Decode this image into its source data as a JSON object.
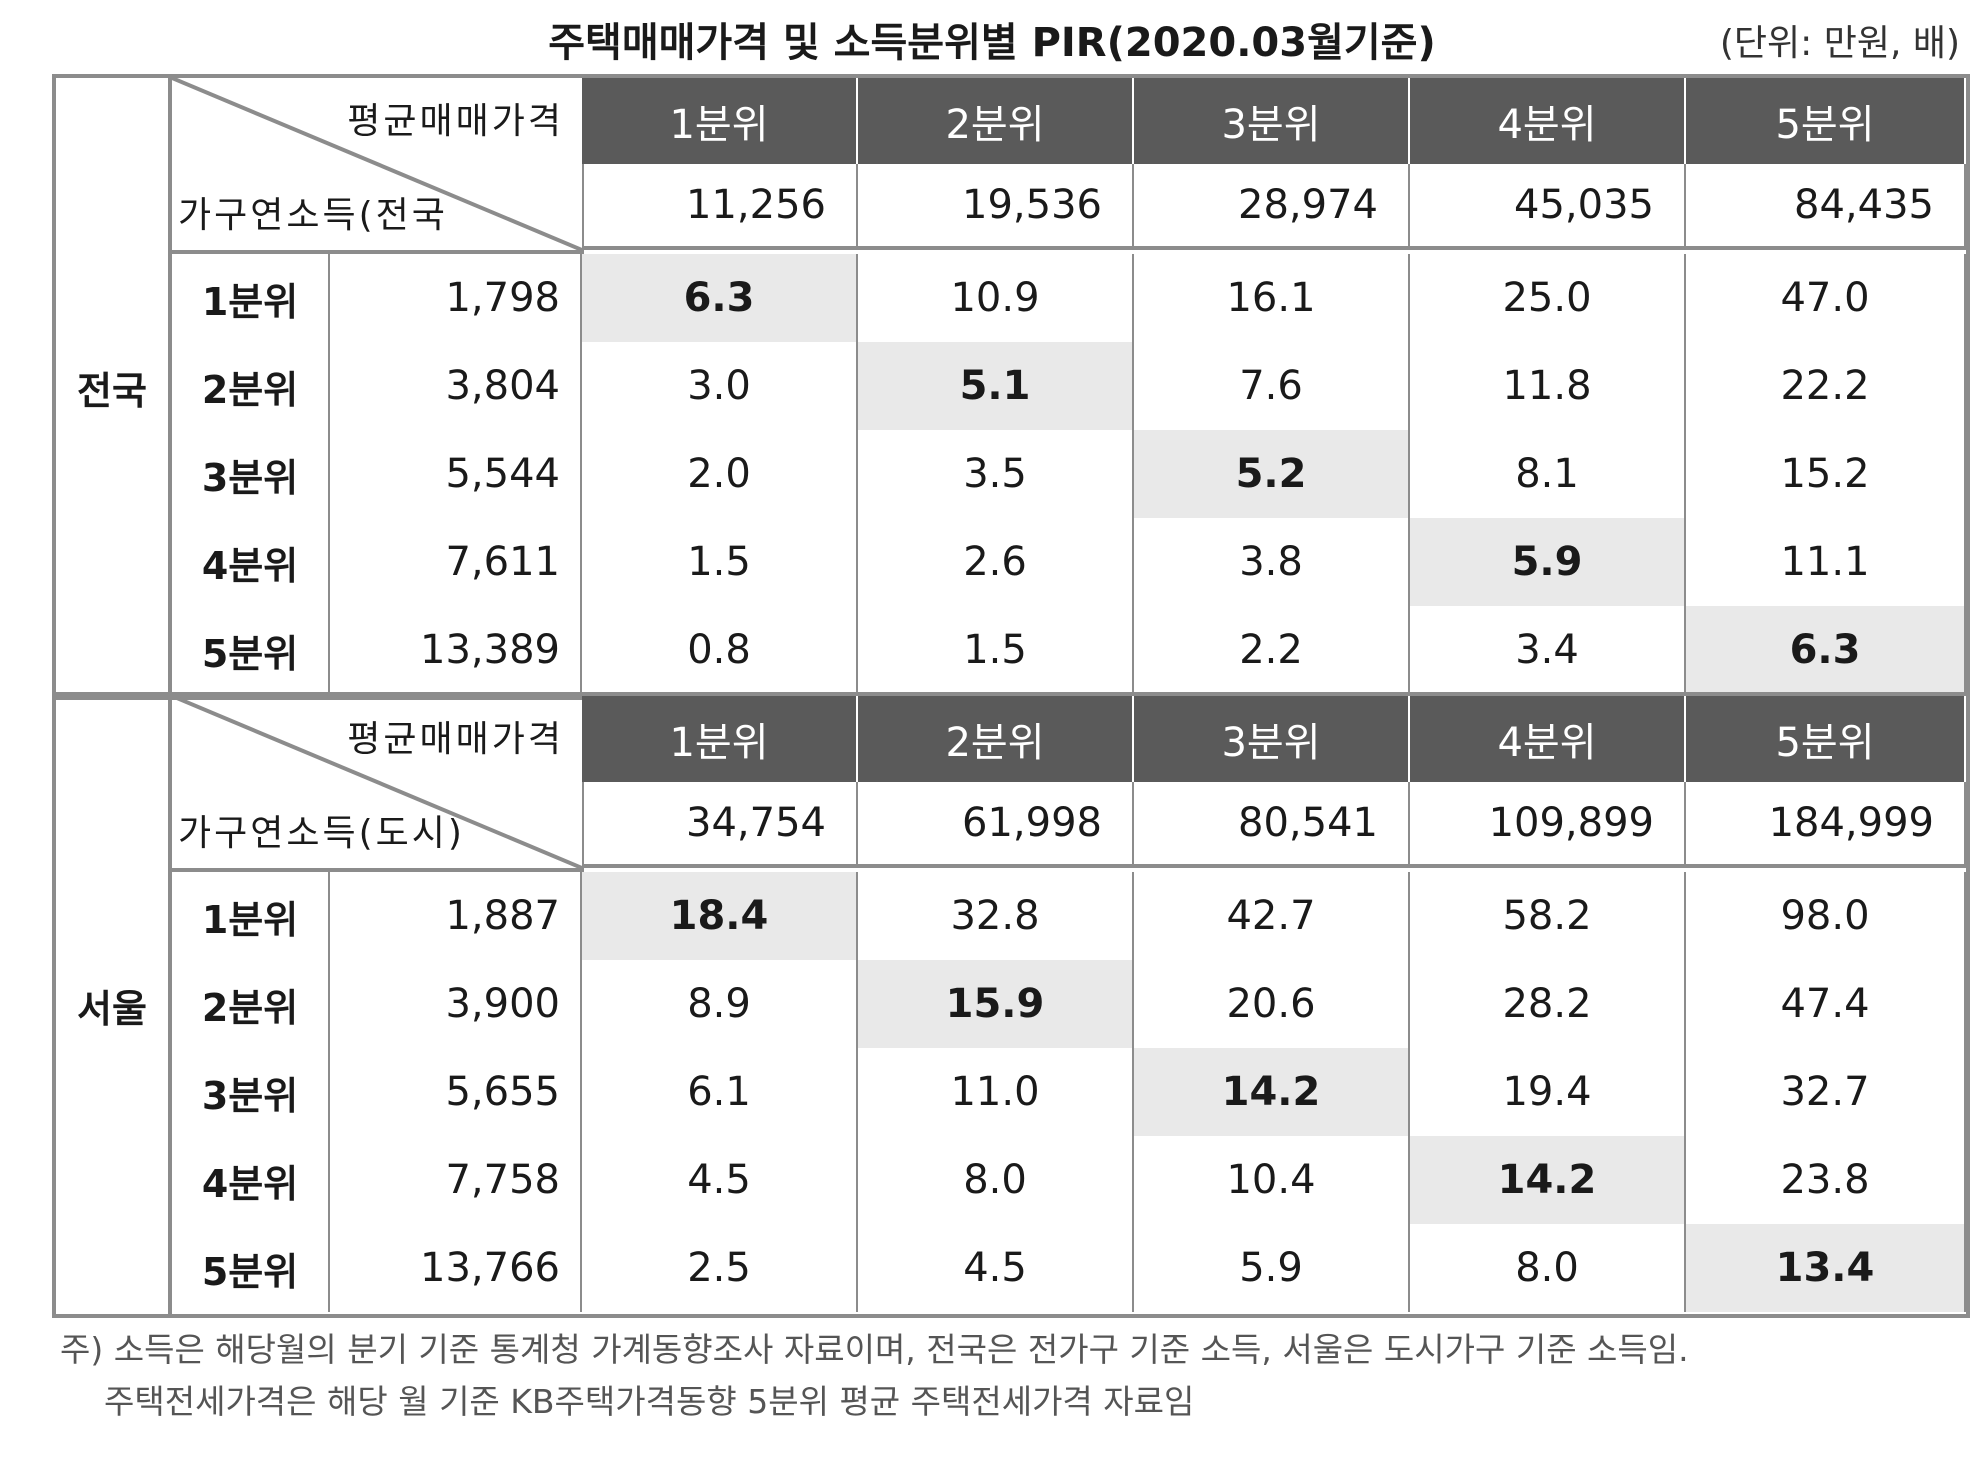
{
  "title": "주택매매가격 및 소득분위별 PIR(2020.03월기준)",
  "unit": "(단위: 만원, 배)",
  "corner_price_label": "평균매매가격",
  "quintiles": [
    "1분위",
    "2분위",
    "3분위",
    "4분위",
    "5분위"
  ],
  "sections": [
    {
      "region": "전국",
      "income_label": "가구연소득(전국",
      "prices": [
        "11,256",
        "19,536",
        "28,974",
        "45,035",
        "84,435"
      ],
      "rows": [
        {
          "label": "1분위",
          "income": "1,798",
          "values": [
            "6.3",
            "10.9",
            "16.1",
            "25.0",
            "47.0"
          ]
        },
        {
          "label": "2분위",
          "income": "3,804",
          "values": [
            "3.0",
            "5.1",
            "7.6",
            "11.8",
            "22.2"
          ]
        },
        {
          "label": "3분위",
          "income": "5,544",
          "values": [
            "2.0",
            "3.5",
            "5.2",
            "8.1",
            "15.2"
          ]
        },
        {
          "label": "4분위",
          "income": "7,611",
          "values": [
            "1.5",
            "2.6",
            "3.8",
            "5.9",
            "11.1"
          ]
        },
        {
          "label": "5분위",
          "income": "13,389",
          "values": [
            "0.8",
            "1.5",
            "2.2",
            "3.4",
            "6.3"
          ]
        }
      ]
    },
    {
      "region": "서울",
      "income_label": "가구연소득(도시)",
      "prices": [
        "34,754",
        "61,998",
        "80,541",
        "109,899",
        "184,999"
      ],
      "rows": [
        {
          "label": "1분위",
          "income": "1,887",
          "values": [
            "18.4",
            "32.8",
            "42.7",
            "58.2",
            "98.0"
          ]
        },
        {
          "label": "2분위",
          "income": "3,900",
          "values": [
            "8.9",
            "15.9",
            "20.6",
            "28.2",
            "47.4"
          ]
        },
        {
          "label": "3분위",
          "income": "5,655",
          "values": [
            "6.1",
            "11.0",
            "14.2",
            "19.4",
            "32.7"
          ]
        },
        {
          "label": "4분위",
          "income": "7,758",
          "values": [
            "4.5",
            "8.0",
            "10.4",
            "14.2",
            "23.8"
          ]
        },
        {
          "label": "5분위",
          "income": "13,766",
          "values": [
            "2.5",
            "4.5",
            "5.9",
            "8.0",
            "13.4"
          ]
        }
      ]
    }
  ],
  "notes": [
    "주) 소득은 해당월의 분기 기준 통계청 가계동향조사 자료이며, 전국은 전가구 기준 소득, 서울은 도시가구 기준 소득임.",
    "주택전세가격은 해당 월 기준 KB주택가격동향 5분위 평균 주택전세가격 자료임"
  ]
}
